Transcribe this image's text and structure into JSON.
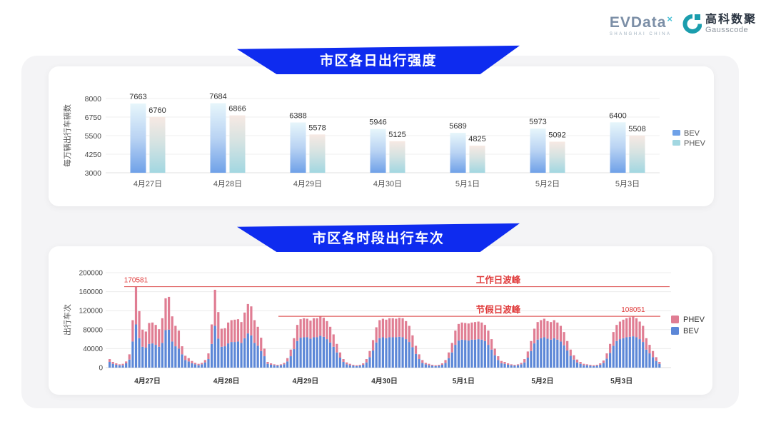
{
  "header": {
    "evdata": {
      "text": "EVData",
      "superscript": "×",
      "subtext": "SHANGHAI CHINA"
    },
    "gausscode": {
      "cn": "高科数聚",
      "en": "Gausscode"
    }
  },
  "colors": {
    "banner_blue": "#0e2bef",
    "bev_gradient_top": "#e7f6fb",
    "bev_gradient_bottom": "#6fa1e8",
    "phev_gradient_top": "#f7e9e3",
    "phev_gradient_bottom": "#a2d7e1",
    "bev_stacked": "#5c87d7",
    "phev_stacked": "#e07d93",
    "ref_line_red": "#e06060",
    "annotation_red": "#e03b3b"
  },
  "chart_data": [
    {
      "type": "bar",
      "title": "市区各日出行强度",
      "ylabel": "每万辆出行车辆数",
      "xlabel": "",
      "categories": [
        "4月27日",
        "4月28日",
        "4月29日",
        "4月30日",
        "5月1日",
        "5月2日",
        "5月3日"
      ],
      "series": [
        {
          "name": "BEV",
          "values": [
            7663,
            7684,
            6388,
            5946,
            5689,
            5973,
            6400
          ]
        },
        {
          "name": "PHEV",
          "values": [
            6760,
            6866,
            5578,
            5125,
            4825,
            5092,
            5508
          ]
        }
      ],
      "yticks": [
        3000,
        4250,
        5500,
        6750,
        8000
      ],
      "ylim": [
        3000,
        8000
      ],
      "grid": true,
      "legend": [
        "BEV",
        "PHEV"
      ],
      "legend_position": "right"
    },
    {
      "type": "stacked-bar",
      "title": "市区各时段出行车次",
      "ylabel": "出行车次",
      "xlabel": "",
      "categories": [
        "4月27日",
        "4月28日",
        "4月29日",
        "4月30日",
        "5月1日",
        "5月2日",
        "5月3日"
      ],
      "bars_per_day": 24,
      "yticks": [
        0,
        40000,
        80000,
        120000,
        160000,
        200000
      ],
      "ylim": [
        0,
        200000
      ],
      "grid": true,
      "legend": [
        "PHEV",
        "BEV"
      ],
      "legend_position": "right",
      "ref_lines": [
        {
          "label": "工作日波峰",
          "value": 170581
        },
        {
          "label": "节假日波峰",
          "value": 108051
        }
      ],
      "annotations": [
        {
          "text": "170581",
          "bar_index": 8,
          "value": 170581
        },
        {
          "text": "108051",
          "bar_index": 159,
          "value": 108051
        }
      ],
      "series": [
        {
          "name": "BEV",
          "values_by_day": [
            [
              12000,
              8000,
              6000,
              5000,
              5000,
              9000,
              17000,
              55000,
              91000,
              62000,
              44000,
              42000,
              50000,
              51000,
              48000,
              44000,
              52000,
              79000,
              80000,
              55000,
              45000,
              40000,
              28000,
              16000
            ],
            [
              13000,
              9000,
              7000,
              5000,
              7000,
              11000,
              18000,
              50000,
              88000,
              61000,
              44000,
              45000,
              51000,
              54000,
              54000,
              55000,
              52000,
              62000,
              72000,
              68000,
              52000,
              46000,
              35000,
              24000
            ],
            [
              8000,
              6000,
              5000,
              4000,
              5000,
              7000,
              13000,
              24000,
              39000,
              56000,
              63000,
              64000,
              64000,
              61000,
              64000,
              64000,
              67000,
              65000,
              60000,
              53000,
              44000,
              32000,
              21000,
              12000
            ],
            [
              7000,
              5000,
              4000,
              3000,
              4000,
              6000,
              11000,
              22000,
              36000,
              53000,
              62000,
              64000,
              62000,
              64000,
              64000,
              64000,
              65000,
              64000,
              60000,
              54000,
              43000,
              29000,
              18000,
              10000
            ],
            [
              7000,
              5000,
              4000,
              3000,
              4000,
              6000,
              10000,
              20000,
              32000,
              48000,
              57000,
              59000,
              58000,
              57000,
              59000,
              59000,
              60000,
              59000,
              56000,
              48000,
              38000,
              26000,
              16000,
              9000
            ],
            [
              8000,
              6000,
              5000,
              4000,
              5000,
              7000,
              11000,
              21000,
              35000,
              51000,
              59000,
              62000,
              64000,
              61000,
              59000,
              62000,
              59000,
              55000,
              47000,
              36000,
              25000,
              17000,
              11000,
              8000
            ],
            [
              5000,
              5000,
              4000,
              3000,
              4000,
              6000,
              10000,
              19000,
              31000,
              46000,
              56000,
              60000,
              62000,
              64000,
              65000,
              66000,
              64000,
              60000,
              54000,
              38000,
              30000,
              22000,
              14000,
              8000
            ]
          ]
        },
        {
          "name": "PHEV",
          "values_by_day": [
            [
              6000,
              4000,
              3000,
              2000,
              3000,
              4000,
              11000,
              45000,
              79581,
              57000,
              36000,
              34000,
              44000,
              44000,
              42000,
              37000,
              52000,
              67000,
              69000,
              53000,
              43000,
              38000,
              17000,
              9000
            ],
            [
              7000,
              5000,
              3000,
              3000,
              3000,
              5000,
              12000,
              41000,
              76000,
              56000,
              38000,
              38000,
              44000,
              46000,
              47000,
              47000,
              44000,
              54000,
              62000,
              61000,
              48000,
              40000,
              28000,
              16000
            ],
            [
              4000,
              3000,
              2000,
              2000,
              2000,
              3000,
              7000,
              14000,
              23000,
              34000,
              39000,
              40000,
              39000,
              38000,
              40000,
              40000,
              42000,
              40000,
              38000,
              33000,
              26000,
              18000,
              11000,
              6000
            ],
            [
              4000,
              3000,
              2000,
              2000,
              2000,
              3000,
              7000,
              13000,
              22000,
              32000,
              38000,
              39000,
              39000,
              40000,
              40000,
              39000,
              40000,
              40000,
              38000,
              34000,
              25000,
              17000,
              10000,
              6000
            ],
            [
              3000,
              3000,
              2000,
              2000,
              2000,
              3000,
              6000,
              12000,
              20000,
              30000,
              35000,
              36000,
              36000,
              36000,
              36000,
              37000,
              37000,
              36000,
              34000,
              30000,
              22000,
              14000,
              8000,
              5000
            ],
            [
              4000,
              3000,
              2000,
              2000,
              2000,
              3000,
              7000,
              13000,
              21000,
              31000,
              37000,
              38000,
              39000,
              37000,
              37000,
              38000,
              36000,
              33000,
              28000,
              20000,
              13000,
              9000,
              6000,
              4000
            ],
            [
              3000,
              2000,
              2000,
              2000,
              2000,
              3000,
              5000,
              11000,
              19000,
              29000,
              34000,
              37000,
              39000,
              40000,
              41000,
              42051,
              40000,
              37000,
              34000,
              24000,
              18000,
              13000,
              8000,
              4000
            ]
          ]
        }
      ]
    }
  ]
}
